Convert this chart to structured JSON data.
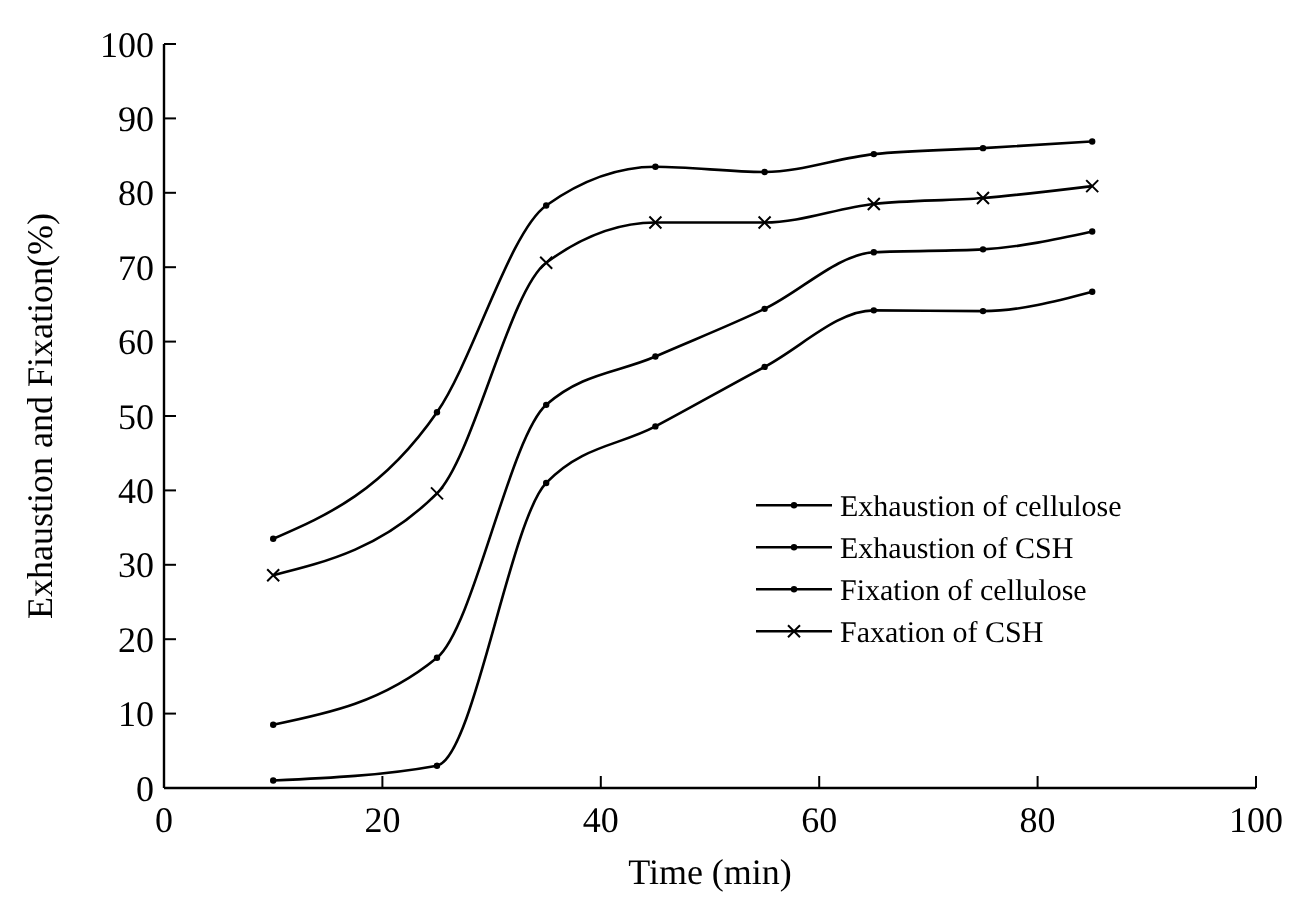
{
  "chart_data": {
    "type": "line",
    "xlabel": "Time (min)",
    "ylabel": "Exhaustion and Fixation(%)",
    "xlim": [
      0,
      100
    ],
    "xticks": [
      0,
      20,
      40,
      60,
      80,
      100
    ],
    "ylim": [
      0,
      100
    ],
    "yticks": [
      0,
      10,
      20,
      30,
      40,
      50,
      60,
      70,
      80,
      90,
      100
    ],
    "grid": false,
    "legend": "right",
    "line_style": "solid",
    "x": [
      10,
      25,
      35,
      45,
      55,
      65,
      75,
      85
    ],
    "series": [
      {
        "name": "Exhaustion of cellulose",
        "color": "#000000",
        "marker": "circle",
        "values": [
          8.5,
          17.5,
          51.5,
          58,
          64.4,
          72,
          72.4,
          74.8
        ]
      },
      {
        "name": "Exhaustion of CSH",
        "color": "#000000",
        "marker": "circle",
        "values": [
          33.5,
          50.5,
          78.3,
          83.5,
          82.8,
          85.2,
          86,
          86.9
        ]
      },
      {
        "name": "Fixation of cellulose",
        "color": "#000000",
        "marker": "circle",
        "values": [
          1,
          3,
          41,
          48.6,
          56.6,
          64.2,
          64.1,
          66.7
        ]
      },
      {
        "name": "Faxation of CSH",
        "color": "#000000",
        "marker": "cross",
        "values": [
          28.6,
          39.6,
          70.6,
          76,
          76,
          78.5,
          79.3,
          80.9
        ]
      }
    ]
  }
}
